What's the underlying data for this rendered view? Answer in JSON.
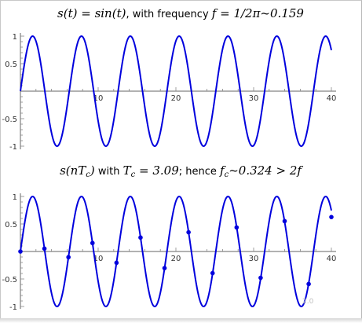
{
  "chart_data": [
    {
      "type": "line",
      "title": "s(t) = sin(t) , with frequency f = 1/2π~0.159",
      "title_parts": {
        "lhs": "s(t) = sin(t)",
        "mid": ", with frequency ",
        "rhs": "f = 1/2π~0.159"
      },
      "function": "sin(t)",
      "xlim": [
        0,
        40
      ],
      "ylim": [
        -1,
        1
      ],
      "x_ticks": [
        "10",
        "20",
        "30",
        "40"
      ],
      "y_ticks": [
        "1",
        "0.5",
        "-0.5",
        "-1"
      ],
      "x_tick_values": [
        10,
        20,
        30,
        40
      ],
      "y_tick_values": [
        1,
        0.5,
        -0.5,
        -1
      ],
      "line_color": "#0000dd",
      "grid": false
    },
    {
      "type": "line",
      "title": "s(nTc) with Tc = 3.09; hence fc~0.324 > 2f",
      "title_parts": {
        "lhs": "s(nT",
        "lhs_sub": "c",
        "lhs_end": ")",
        "mid1": " with ",
        "tc": "T",
        "tc_sub": "c",
        "tc_rest": " = 3.09",
        "mid2": "; hence ",
        "fc": "f",
        "fc_sub": "c",
        "fc_rest": "~0.324 > 2f"
      },
      "function": "sin(t)",
      "sampling_period": 3.09,
      "xlim": [
        0,
        40
      ],
      "ylim": [
        -1,
        1
      ],
      "x_ticks": [
        "10",
        "20",
        "30",
        "40"
      ],
      "y_ticks": [
        "1",
        "0.5",
        "-0.5",
        "-1"
      ],
      "x_tick_values": [
        10,
        20,
        30,
        40
      ],
      "y_tick_values": [
        1,
        0.5,
        -0.5,
        -1
      ],
      "samples": [
        {
          "x": 0.0,
          "y": 0.0
        },
        {
          "x": 3.09,
          "y": 0.052
        },
        {
          "x": 6.18,
          "y": -0.103
        },
        {
          "x": 9.27,
          "y": 0.154
        },
        {
          "x": 12.36,
          "y": -0.205
        },
        {
          "x": 15.45,
          "y": 0.254
        },
        {
          "x": 18.54,
          "y": -0.302
        },
        {
          "x": 21.63,
          "y": 0.349
        },
        {
          "x": 24.72,
          "y": -0.394
        },
        {
          "x": 27.81,
          "y": 0.437
        },
        {
          "x": 30.9,
          "y": -0.479
        },
        {
          "x": 33.99,
          "y": 0.552
        },
        {
          "x": 37.08,
          "y": -0.591
        },
        {
          "x": 40.17,
          "y": 0.626
        }
      ],
      "line_color": "#0000dd",
      "marker_color": "#0000dd",
      "grid": false
    }
  ],
  "watermark": "2.0"
}
